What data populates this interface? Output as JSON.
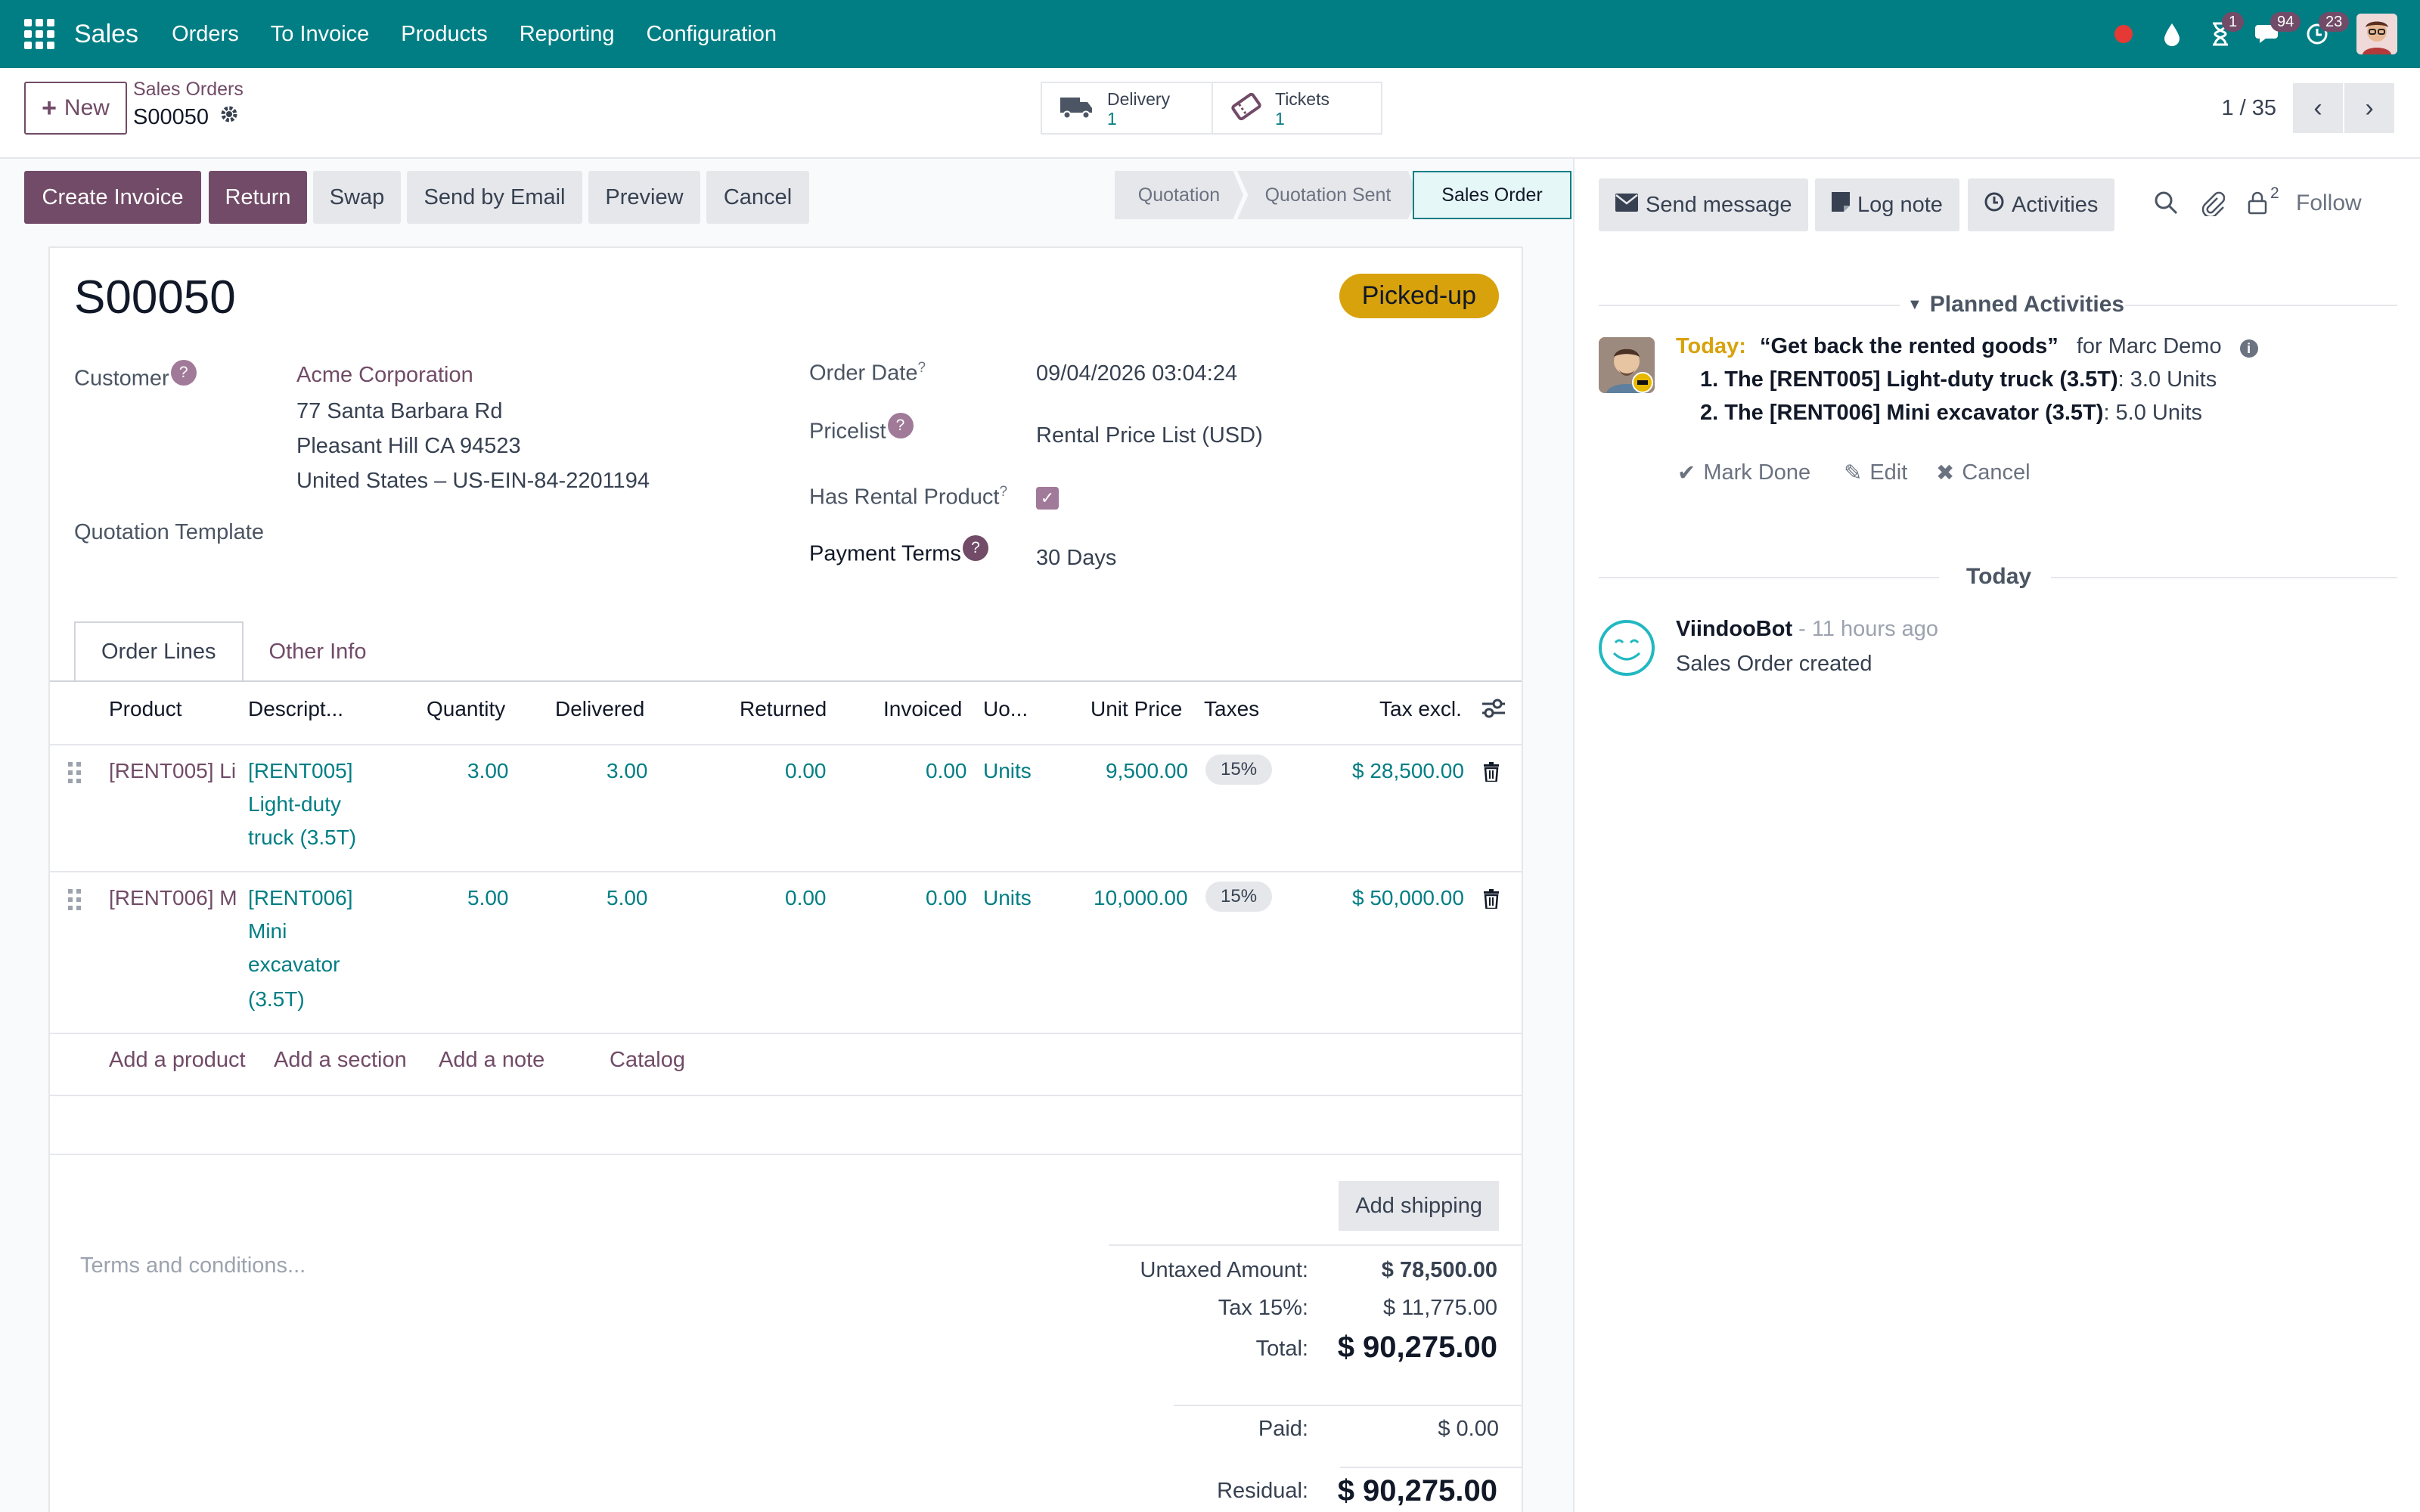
{
  "navbar": {
    "app_name": "Sales",
    "menu": [
      "Orders",
      "To Invoice",
      "Products",
      "Reporting",
      "Configuration"
    ],
    "badges": {
      "activities": "1",
      "messages": "94",
      "activity_clock": "23"
    }
  },
  "control_panel": {
    "new_label": "New",
    "breadcrumb_parent": "Sales Orders",
    "breadcrumb_current": "S00050",
    "smart_buttons": [
      {
        "label": "Delivery",
        "value": "1",
        "icon": "truck-icon"
      },
      {
        "label": "Tickets",
        "value": "1",
        "icon": "ticket-icon"
      }
    ],
    "pager": "1 / 35"
  },
  "statusbar": {
    "buttons": [
      "Create Invoice",
      "Return",
      "Swap",
      "Send by Email",
      "Preview",
      "Cancel"
    ],
    "stages": [
      "Quotation",
      "Quotation Sent",
      "Sales Order"
    ],
    "active_stage": "Sales Order"
  },
  "form": {
    "name": "S00050",
    "ribbon": "Picked-up",
    "customer_label": "Customer",
    "customer_name": "Acme Corporation",
    "address": [
      "77 Santa Barbara Rd",
      "Pleasant Hill CA 94523",
      "United States – US-EIN-84-2201194"
    ],
    "quotation_template_label": "Quotation Template",
    "order_date_label": "Order Date",
    "order_date": "09/04/2026 03:04:24",
    "pricelist_label": "Pricelist",
    "pricelist": "Rental Price List (USD)",
    "has_rental_label": "Has Rental Product",
    "has_rental": true,
    "payment_terms_label": "Payment Terms",
    "payment_terms": "30 Days",
    "tabs": [
      "Order Lines",
      "Other Info"
    ],
    "columns": [
      "Product",
      "Descript...",
      "Quantity",
      "Delivered",
      "Returned",
      "Invoiced",
      "Uo...",
      "Unit Price",
      "Taxes",
      "Tax excl."
    ],
    "lines": [
      {
        "product": "[RENT005] Li",
        "description": [
          "[RENT005]",
          "Light-duty",
          "truck (3.5T)"
        ],
        "quantity": "3.00",
        "delivered": "3.00",
        "returned": "0.00",
        "invoiced": "0.00",
        "uom": "Units",
        "unit_price": "9,500.00",
        "taxes": "15%",
        "subtotal": "$ 28,500.00"
      },
      {
        "product": "[RENT006] M",
        "description": [
          "[RENT006]",
          "Mini",
          "excavator",
          "(3.5T)"
        ],
        "quantity": "5.00",
        "delivered": "5.00",
        "returned": "0.00",
        "invoiced": "0.00",
        "uom": "Units",
        "unit_price": "10,000.00",
        "taxes": "15%",
        "subtotal": "$ 50,000.00"
      }
    ],
    "add_links": [
      "Add a product",
      "Add a section",
      "Add a note",
      "Catalog"
    ],
    "add_shipping": "Add shipping",
    "terms_placeholder": "Terms and conditions...",
    "totals": {
      "untaxed_label": "Untaxed Amount:",
      "untaxed": "$ 78,500.00",
      "tax_label": "Tax 15%:",
      "tax": "$ 11,775.00",
      "total_label": "Total:",
      "total": "$ 90,275.00",
      "paid_label": "Paid:",
      "paid": "$ 0.00",
      "residual_label": "Residual:",
      "residual": "$ 90,275.00"
    }
  },
  "chatter": {
    "send_message": "Send message",
    "log_note": "Log note",
    "activities": "Activities",
    "followers_count": "2",
    "follow": "Follow",
    "planned_title": "Planned Activities",
    "activity": {
      "when": "Today:",
      "summary": "“Get back the rented goods”",
      "for": "for Marc Demo",
      "items": [
        {
          "name": "1. The [RENT005] Light-duty truck (3.5T)",
          "qty": ": 3.0 Units"
        },
        {
          "name": "2. The [RENT006] Mini excavator (3.5T)",
          "qty": ": 5.0 Units"
        }
      ],
      "mark_done": "Mark Done",
      "edit": "Edit",
      "cancel": "Cancel"
    },
    "today_label": "Today",
    "message": {
      "author": "ViindooBot",
      "time": "- 11 hours ago",
      "body": "Sales Order created"
    }
  }
}
